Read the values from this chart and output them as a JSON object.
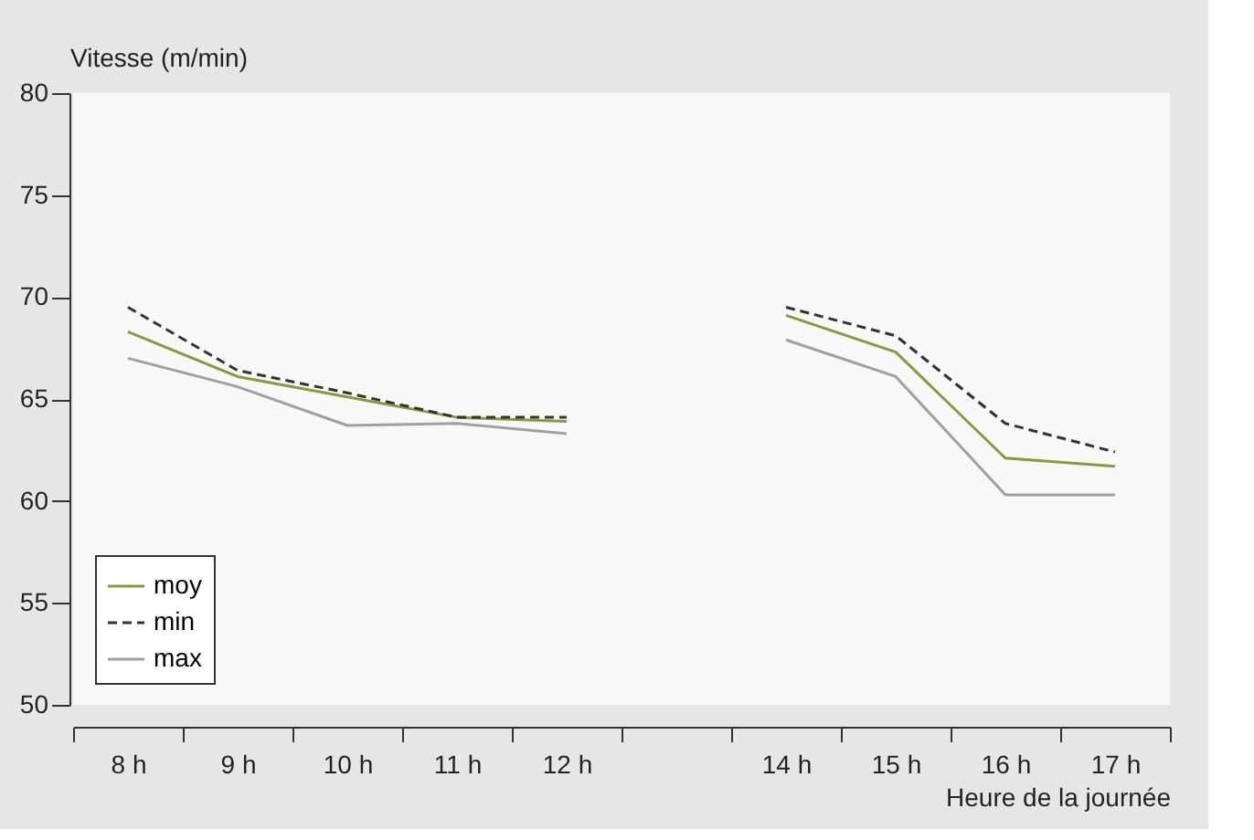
{
  "chart_data": {
    "type": "line",
    "xlabel": "Heure de la journée",
    "ylabel": "Vitesse (m/min)",
    "categories": [
      "8 h",
      "9 h",
      "10 h",
      "11 h",
      "12 h",
      null,
      "14 h",
      "15 h",
      "16 h",
      "17 h"
    ],
    "series": [
      {
        "name": "moy",
        "color": "#8a9a3a",
        "line_style": "solid",
        "values": [
          68.3,
          66.1,
          65.1,
          64.1,
          63.9,
          null,
          69.1,
          67.3,
          62.1,
          61.7
        ]
      },
      {
        "name": "min",
        "color": "#333333",
        "line_style": "dashed",
        "values": [
          69.5,
          66.4,
          65.3,
          64.1,
          64.1,
          null,
          69.5,
          68.1,
          63.8,
          62.4
        ]
      },
      {
        "name": "max",
        "color": "#a0a0a0",
        "line_style": "solid",
        "values": [
          67.0,
          65.6,
          63.7,
          63.8,
          63.3,
          null,
          67.9,
          66.1,
          60.3,
          60.3
        ]
      }
    ],
    "ylim": [
      50,
      80
    ],
    "yticks": [
      50,
      55,
      60,
      65,
      70,
      75,
      80
    ],
    "grid": false,
    "legend": "bottom left",
    "marker": "none"
  }
}
